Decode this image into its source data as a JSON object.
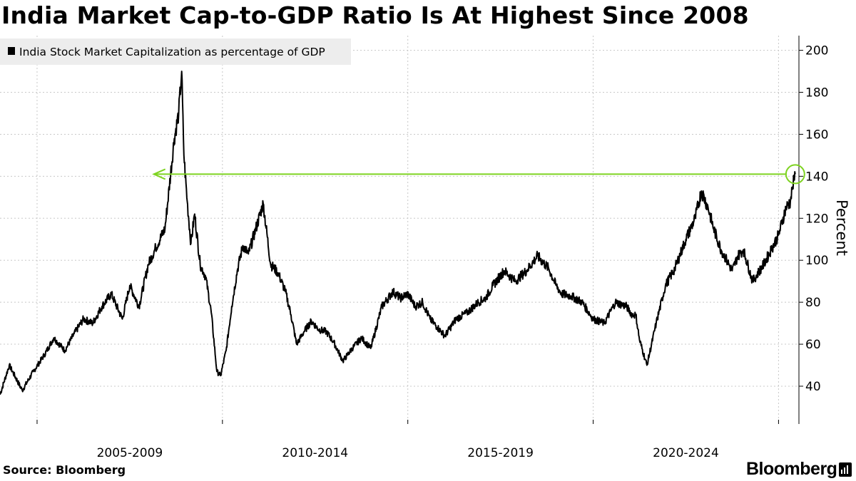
{
  "title": "India Market Cap-to-GDP Ratio Is At Highest Since 2008",
  "source": "Source:  Bloomberg",
  "brand": "Bloomberg",
  "brand_icon": "bloomberg-terminal-icon",
  "colors": {
    "line": "#000000",
    "annotation": "#7ed321",
    "grid": "#c8c8c8",
    "legend_bg": "#ededed"
  },
  "chart_data": {
    "type": "line",
    "title": "India Market Cap-to-GDP Ratio Is At Highest Since 2008",
    "legend": [
      "India Stock Market Capitalization as percentage of GDP"
    ],
    "legend_position": "top-left",
    "ylabel": "Percent",
    "ylim": [
      22,
      207
    ],
    "yticks": [
      40,
      60,
      80,
      100,
      120,
      140,
      160,
      180,
      200
    ],
    "xlim": [
      2003.0,
      2024.55
    ],
    "x_gridlines": [
      2004,
      2009,
      2014,
      2019,
      2024
    ],
    "x_ranges": [
      {
        "label": "2005-2009",
        "center": 2006.5
      },
      {
        "label": "2010-2014",
        "center": 2011.5
      },
      {
        "label": "2015-2019",
        "center": 2016.5
      },
      {
        "label": "2020-2024",
        "center": 2021.5
      }
    ],
    "series": [
      {
        "name": "India Stock Market Capitalization as percentage of GDP",
        "x": [
          2003.0,
          2003.25,
          2003.6,
          2003.9,
          2004.2,
          2004.45,
          2004.75,
          2005.0,
          2005.25,
          2005.5,
          2005.75,
          2006.0,
          2006.3,
          2006.5,
          2006.75,
          2007.0,
          2007.2,
          2007.45,
          2007.7,
          2007.82,
          2007.9,
          2007.96,
          2008.05,
          2008.15,
          2008.25,
          2008.4,
          2008.55,
          2008.7,
          2008.85,
          2008.95,
          2009.1,
          2009.25,
          2009.4,
          2009.55,
          2009.7,
          2009.9,
          2010.1,
          2010.3,
          2010.5,
          2010.7,
          2010.85,
          2011.0,
          2011.2,
          2011.4,
          2011.6,
          2011.8,
          2012.0,
          2012.25,
          2012.5,
          2012.75,
          2013.0,
          2013.3,
          2013.6,
          2013.8,
          2014.0,
          2014.2,
          2014.4,
          2014.6,
          2014.8,
          2015.0,
          2015.3,
          2015.6,
          2015.9,
          2016.1,
          2016.3,
          2016.6,
          2016.9,
          2017.2,
          2017.5,
          2017.8,
          2018.0,
          2018.15,
          2018.4,
          2018.7,
          2019.0,
          2019.3,
          2019.6,
          2019.9,
          2020.05,
          2020.15,
          2020.25,
          2020.45,
          2020.7,
          2020.95,
          2021.2,
          2021.5,
          2021.75,
          2021.92,
          2022.1,
          2022.25,
          2022.45,
          2022.6,
          2022.75,
          2022.9,
          2023.05,
          2023.3,
          2023.6,
          2023.8,
          2024.0,
          2024.2,
          2024.32,
          2024.38,
          2024.45
        ],
        "values": [
          36,
          50,
          38,
          47,
          55,
          63,
          57,
          65,
          72,
          70,
          78,
          84,
          72,
          88,
          78,
          98,
          106,
          115,
          158,
          170,
          190,
          150,
          128,
          108,
          122,
          98,
          92,
          75,
          47,
          45,
          57,
          78,
          95,
          107,
          103,
          115,
          127,
          98,
          94,
          85,
          74,
          60,
          66,
          71,
          67,
          66,
          61,
          52,
          58,
          63,
          58,
          78,
          85,
          82,
          84,
          78,
          80,
          72,
          68,
          64,
          72,
          75,
          80,
          82,
          88,
          95,
          90,
          95,
          102,
          96,
          88,
          84,
          83,
          80,
          72,
          70,
          80,
          78,
          74,
          74,
          62,
          50,
          70,
          88,
          96,
          110,
          120,
          133,
          125,
          115,
          105,
          100,
          95,
          102,
          105,
          90,
          98,
          105,
          112,
          125,
          128,
          135,
          141
        ]
      }
    ],
    "annotation": {
      "type": "arrow",
      "from_x": 2024.45,
      "to_x": 2007.15,
      "y": 141,
      "circle_at": [
        2024.45,
        141
      ]
    }
  }
}
